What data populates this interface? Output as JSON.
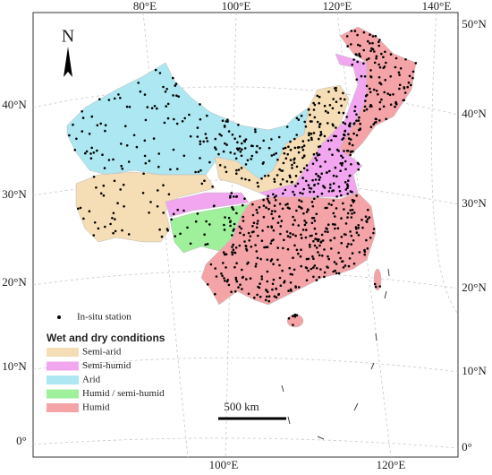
{
  "north": "N",
  "graticule": {
    "top": [
      "80°E",
      "100°E",
      "120°E",
      "140°E"
    ],
    "bottom": [
      "100°E",
      "120°E"
    ],
    "left": [
      "40°N",
      "30°N",
      "20°N",
      "10°N",
      "0°"
    ],
    "right": [
      "50°N",
      "40°N",
      "30°N",
      "20°N",
      "10°N",
      "0°"
    ]
  },
  "legend": {
    "station": "In-situ station",
    "title": "Wet and dry conditions",
    "items": [
      {
        "label": "Semi-arid",
        "color": "#f5ddb5"
      },
      {
        "label": "Semi-humid",
        "color": "#f2a6f0"
      },
      {
        "label": "Arid",
        "color": "#ade7f1"
      },
      {
        "label": "Humid / semi-humid",
        "color": "#9ef09a"
      },
      {
        "label": "Humid",
        "color": "#f4a3a6"
      }
    ]
  },
  "scale_bar": "500 km"
}
